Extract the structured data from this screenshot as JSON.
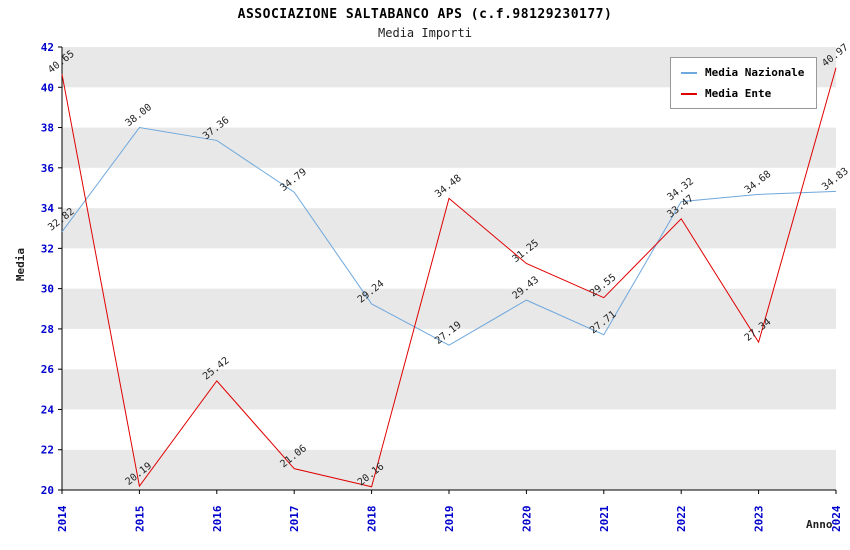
{
  "header": {
    "title": "ASSOCIAZIONE SALTABANCO APS (c.f.98129230177)",
    "subtitle": "Media Importi"
  },
  "chart_data": {
    "type": "line",
    "categories": [
      "2014",
      "2015",
      "2016",
      "2017",
      "2018",
      "2019",
      "2020",
      "2021",
      "2022",
      "2023",
      "2024"
    ],
    "series": [
      {
        "name": "Media Nazionale",
        "color": "#6FA8DC",
        "values": [
          32.82,
          38.0,
          37.36,
          34.79,
          29.24,
          27.19,
          29.43,
          27.71,
          34.32,
          34.68,
          34.83
        ]
      },
      {
        "name": "Media Ente",
        "color": "#E00000",
        "values": [
          40.65,
          20.19,
          25.42,
          21.06,
          20.16,
          34.48,
          31.25,
          29.55,
          33.47,
          27.34,
          40.97
        ]
      }
    ],
    "xlabel": "Anno",
    "ylabel": "Media",
    "ylim": [
      20,
      42
    ],
    "ytick_step": 2,
    "grid": "horizontal-bands",
    "band_colors": [
      "#e8e8e8",
      "#ffffff"
    ],
    "legend_position": "top-right",
    "axis_color": "#000000",
    "tick_label_color": "#0000CC",
    "value_label_color": "#222222",
    "value_label_decimals": 2
  }
}
